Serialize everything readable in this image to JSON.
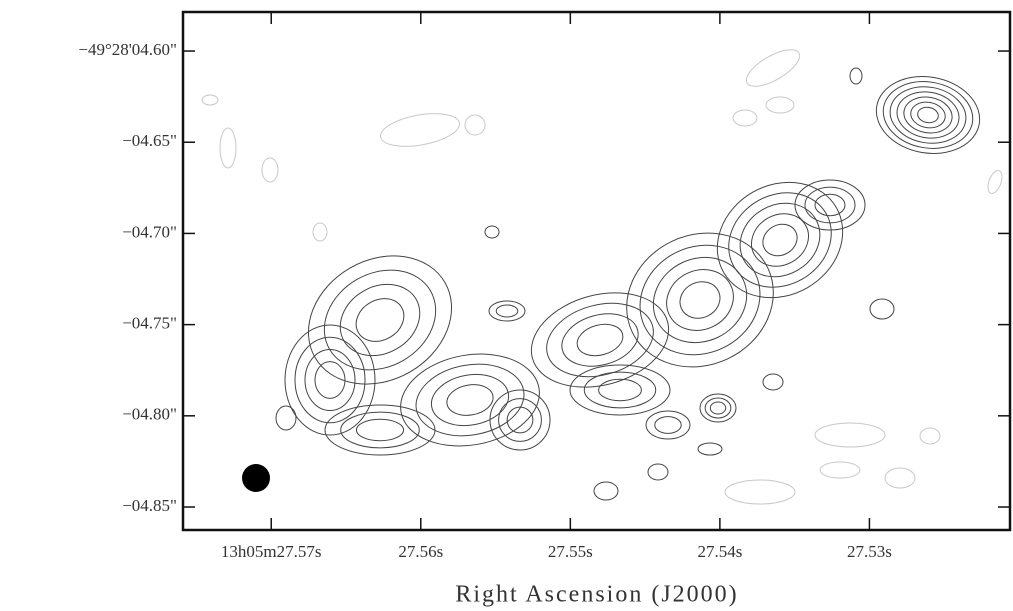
{
  "chart_data": {
    "type": "contour",
    "xlabel": "Right Ascension (J2000)",
    "xlim": [
      27.5759,
      27.5206
    ],
    "xticks": [
      {
        "value": 27.57,
        "label": "13h05m27.57s"
      },
      {
        "value": 27.56,
        "label": "27.56s"
      },
      {
        "value": 27.55,
        "label": "27.55s"
      },
      {
        "value": 27.54,
        "label": "27.54s"
      },
      {
        "value": 27.53,
        "label": "27.53s"
      }
    ],
    "ylim": [
      -4.8626,
      -4.5786
    ],
    "yticks": [
      {
        "value": -4.6,
        "label": "−49°28'04.60\""
      },
      {
        "value": -4.65,
        "label": "−04.65\""
      },
      {
        "value": -4.7,
        "label": "−04.70\""
      },
      {
        "value": -4.75,
        "label": "−04.75\""
      },
      {
        "value": -4.8,
        "label": "−04.80\""
      },
      {
        "value": -4.85,
        "label": "−04.85\""
      }
    ]
  }
}
